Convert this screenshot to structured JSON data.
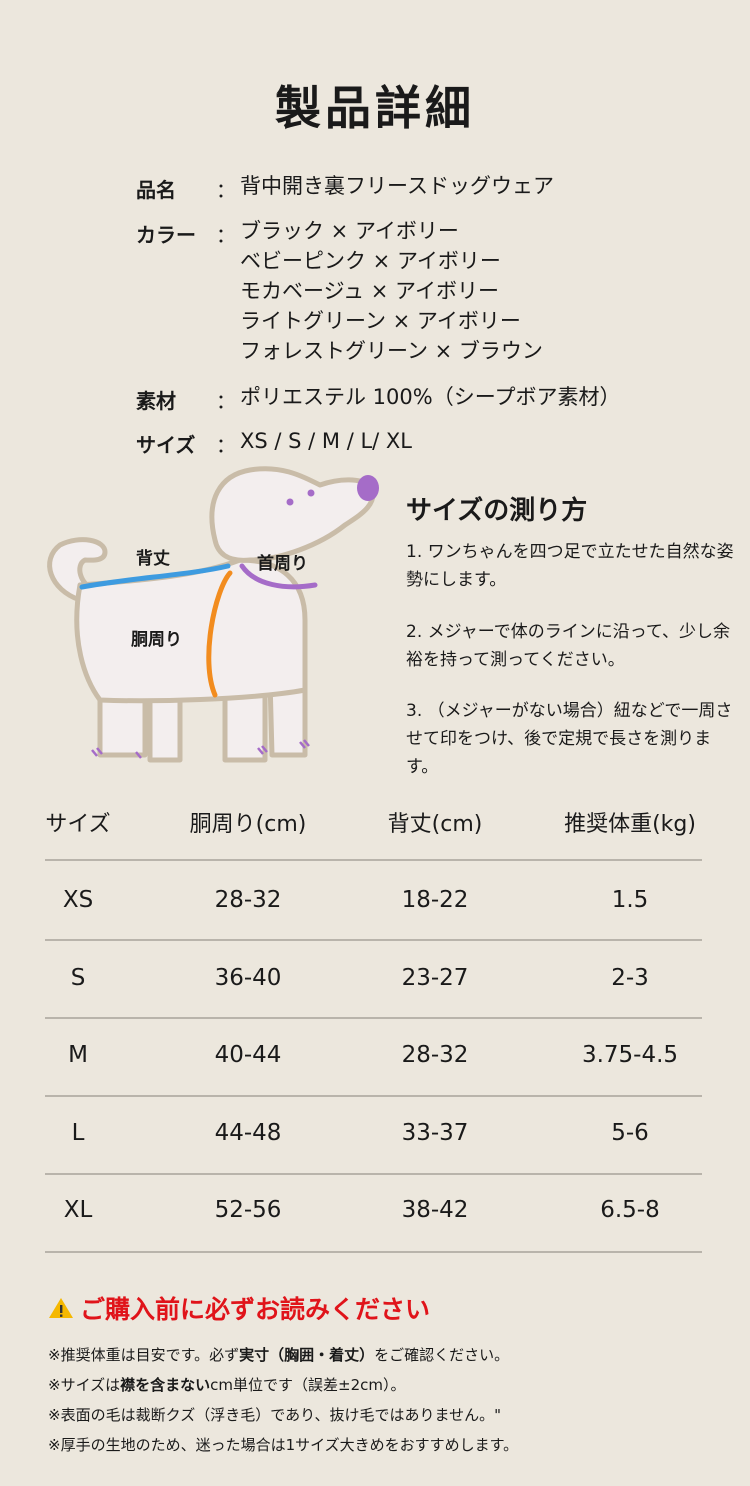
{
  "title": "製品詳細",
  "specs": {
    "name_label": "品名",
    "name_value": "背中開き裏フリースドッグウェア",
    "color_label": "カラー",
    "colors": [
      "ブラック × アイボリー",
      "ベビーピンク × アイボリー",
      "モカベージュ × アイボリー",
      "ライトグリーン × アイボリー",
      "フォレストグリーン × ブラウン"
    ],
    "material_label": "素材",
    "material_value": "ポリエステル 100%（シープボア素材）",
    "size_label": "サイズ",
    "size_value": "XS / S / M / L/ XL",
    "colon": "："
  },
  "diagram": {
    "back_length": "背丈",
    "neck": "首周り",
    "girth": "胴周り",
    "colors": {
      "back": "#3d9be0",
      "neck": "#a56cc8",
      "girth": "#f28c1e",
      "outline": "#c9bca8",
      "body": "#f3eeee"
    }
  },
  "howto": {
    "title": "サイズの測り方",
    "steps": [
      "1. ワンちゃんを四つ足で立たせた自然な姿勢にします。",
      "2. メジャーで体のラインに沿って、少し余裕を持って測ってください。",
      "3. （メジャーがない場合）紐などで一周させて印をつけ、後で定規で長さを測ります。"
    ]
  },
  "table": {
    "headers": [
      "サイズ",
      "胴周り(cm)",
      "背丈(cm)",
      "推奨体重(kg)"
    ],
    "rows": [
      [
        "XS",
        "28-32",
        "18-22",
        "1.5"
      ],
      [
        "S",
        "36-40",
        "23-27",
        "2-3"
      ],
      [
        "M",
        "40-44",
        "28-32",
        "3.75-4.5"
      ],
      [
        "L",
        "44-48",
        "33-37",
        "5-6"
      ],
      [
        "XL",
        "52-56",
        "38-42",
        "6.5-8"
      ]
    ]
  },
  "notice": {
    "icon": "warning-icon",
    "title": "ご購入前に必ずお読みください",
    "color": "#e0141a",
    "n1a": "※推奨体重は目安です。必ず",
    "n1b": "実寸（胸囲・着丈）",
    "n1c": "をご確認ください。",
    "n2a": "※サイズは",
    "n2b": "襟を含まない",
    "n2c": "cm単位です（誤差±2cm）。",
    "n3": "※表面の毛は裁断クズ（浮き毛）であり、抜け毛ではありません。\"",
    "n4": "※厚手の生地のため、迷った場合は1サイズ大きめをおすすめします。"
  }
}
